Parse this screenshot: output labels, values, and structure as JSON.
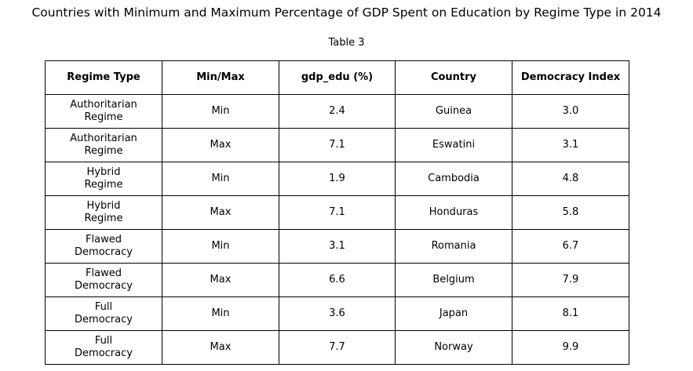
{
  "chart_data": {
    "type": "table",
    "title": "Countries with Minimum and Maximum Percentage of GDP Spent on Education by Regime Type in 2014",
    "subtitle": "Table 3",
    "columns": [
      "Regime Type",
      "Min/Max",
      "gdp_edu (%)",
      "Country",
      "Democracy Index"
    ],
    "rows": [
      [
        [
          "Authoritarian",
          "Regime"
        ],
        "Min",
        "2.4",
        "Guinea",
        "3.0"
      ],
      [
        [
          "Authoritarian",
          "Regime"
        ],
        "Max",
        "7.1",
        "Eswatini",
        "3.1"
      ],
      [
        [
          "Hybrid",
          "Regime"
        ],
        "Min",
        "1.9",
        "Cambodia",
        "4.8"
      ],
      [
        [
          "Hybrid",
          "Regime"
        ],
        "Max",
        "7.1",
        "Honduras",
        "5.8"
      ],
      [
        [
          "Flawed",
          "Democracy"
        ],
        "Min",
        "3.1",
        "Romania",
        "6.7"
      ],
      [
        [
          "Flawed",
          "Democracy"
        ],
        "Max",
        "6.6",
        "Belgium",
        "7.9"
      ],
      [
        [
          "Full",
          "Democracy"
        ],
        "Min",
        "3.6",
        "Japan",
        "8.1"
      ],
      [
        [
          "Full",
          "Democracy"
        ],
        "Max",
        "7.7",
        "Norway",
        "9.9"
      ]
    ]
  }
}
